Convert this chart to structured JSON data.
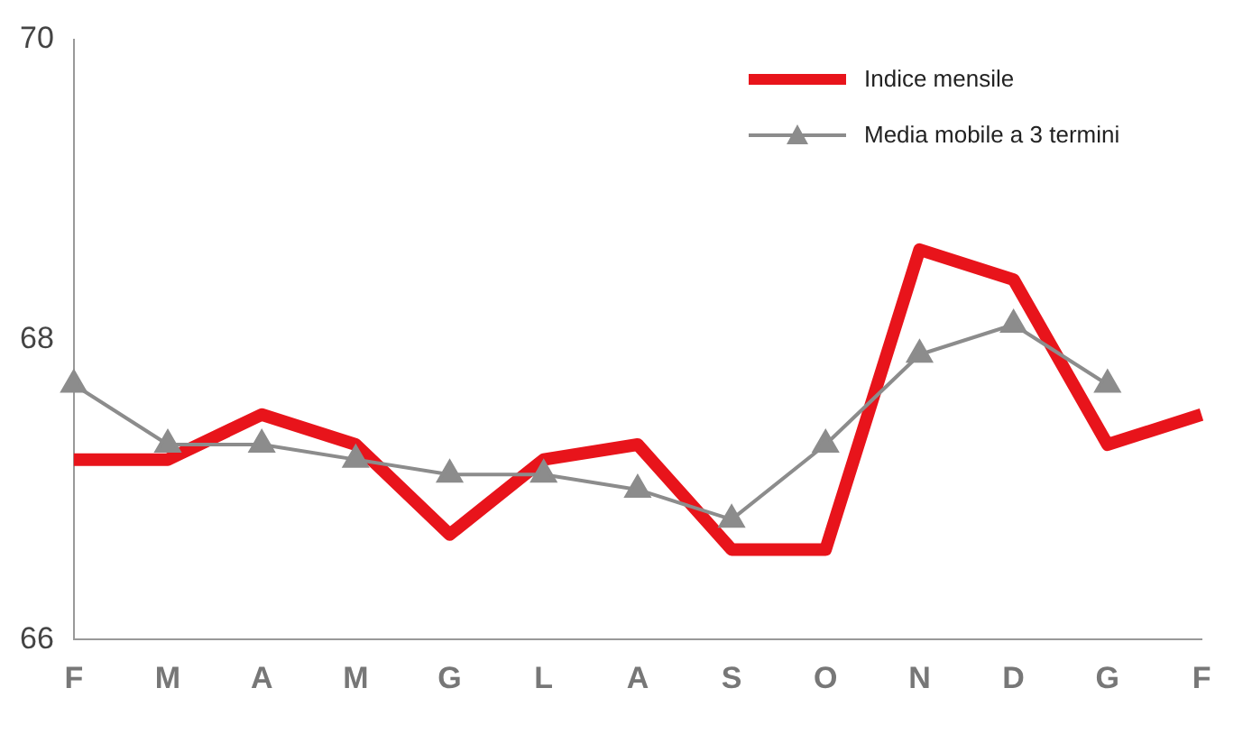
{
  "chart_data": {
    "type": "line",
    "categories": [
      "F",
      "M",
      "A",
      "M",
      "G",
      "L",
      "A",
      "S",
      "O",
      "N",
      "D",
      "G",
      "F"
    ],
    "series": [
      {
        "name": "Indice mensile",
        "color": "#e8141b",
        "marker": "none",
        "values": [
          67.2,
          67.2,
          67.5,
          67.3,
          66.7,
          67.2,
          67.3,
          66.6,
          66.6,
          68.6,
          68.4,
          67.3,
          67.5
        ]
      },
      {
        "name": "Media mobile a 3 termini",
        "color": "#8c8c8c",
        "marker": "triangle",
        "values": [
          67.7,
          67.3,
          67.3,
          67.2,
          67.1,
          67.1,
          67.0,
          66.8,
          67.3,
          67.9,
          68.1,
          67.7,
          null
        ]
      }
    ],
    "ylim": [
      66,
      70
    ],
    "yticks": [
      66,
      68,
      70
    ],
    "grid": false,
    "legend": "top right"
  }
}
